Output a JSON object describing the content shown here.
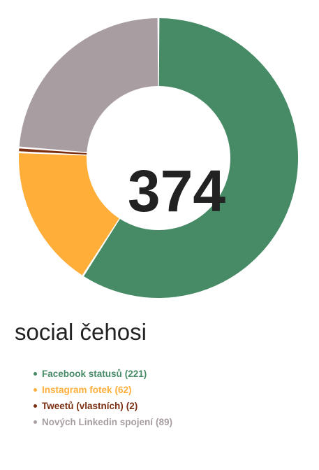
{
  "chart_data": {
    "type": "pie",
    "variant": "donut",
    "center_label": "374",
    "title": "social čehosi",
    "legend_placement": "bottom-left",
    "series": [
      {
        "name": "Facebook statusů",
        "value": 221,
        "value_label": "(221)",
        "color": "#468b66"
      },
      {
        "name": "Instagram fotek",
        "value": 62,
        "value_label": "(62)",
        "color": "#ffae3a"
      },
      {
        "name": "Tweetů (vlastních)",
        "value": 2,
        "value_label": "(2)",
        "color": "#7b2e10"
      },
      {
        "name": "Nových Linkedin spojení",
        "value": 89,
        "value_label": "(89)",
        "color": "#a89ea2"
      }
    ]
  }
}
